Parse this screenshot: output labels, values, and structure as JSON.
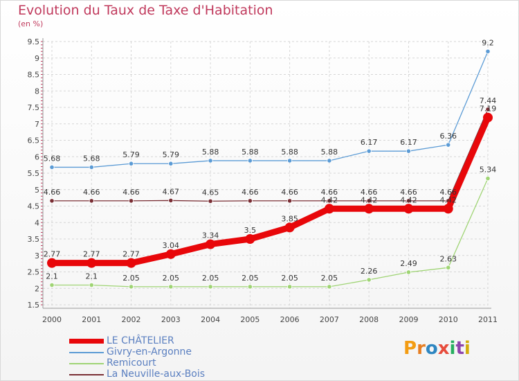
{
  "title": "Evolution du Taux de Taxe d'Habitation",
  "subtitle": "(en %)",
  "logo_text": "Proxiti",
  "colors": {
    "title": "#c0395c",
    "grid": "#d6d6d6",
    "axis": "#999999"
  },
  "chart_data": {
    "type": "line",
    "title": "Evolution du Taux de Taxe d'Habitation",
    "ylabel": "(en %)",
    "xlabel": "",
    "ylim": [
      1.5,
      9.5
    ],
    "yticks": [
      "1.5",
      "2",
      "2.5",
      "3",
      "3.5",
      "4",
      "4.5",
      "5",
      "5.5",
      "6",
      "6.5",
      "7",
      "7.5",
      "8",
      "8.5",
      "9",
      "9.5"
    ],
    "grid": true,
    "legend_position": "bottom-left",
    "x": [
      2000,
      2001,
      2002,
      2003,
      2004,
      2005,
      2006,
      2007,
      2008,
      2009,
      2010,
      2011
    ],
    "series": [
      {
        "name": "LE CHÂTELIER",
        "color": "#e8070a",
        "bold": true,
        "values": [
          2.77,
          2.77,
          2.77,
          3.04,
          3.34,
          3.5,
          3.85,
          4.42,
          4.42,
          4.42,
          4.42,
          7.19
        ],
        "labels": [
          "2.77",
          "2.77",
          "2.77",
          "3.04",
          "3.34",
          "3.5",
          "3.85",
          "4.42",
          "4.42",
          "4.42",
          "4.42",
          "7.19"
        ]
      },
      {
        "name": "Givry-en-Argonne",
        "color": "#5b9bd5",
        "bold": false,
        "values": [
          5.68,
          5.68,
          5.79,
          5.79,
          5.88,
          5.88,
          5.88,
          5.88,
          6.17,
          6.17,
          6.36,
          9.2
        ],
        "labels": [
          "5.68",
          "5.68",
          "5.79",
          "5.79",
          "5.88",
          "5.88",
          "5.88",
          "5.88",
          "6.17",
          "6.17",
          "6.36",
          "9.2"
        ]
      },
      {
        "name": "Remicourt",
        "color": "#9fd474",
        "bold": false,
        "values": [
          2.1,
          2.1,
          2.05,
          2.05,
          2.05,
          2.05,
          2.05,
          2.05,
          2.26,
          2.49,
          2.63,
          5.34
        ],
        "labels": [
          "2.1",
          "2.1",
          "2.05",
          "2.05",
          "2.05",
          "2.05",
          "2.05",
          "2.05",
          "2.26",
          "2.49",
          "2.63",
          "5.34"
        ]
      },
      {
        "name": "La Neuville-aux-Bois",
        "color": "#7a2f35",
        "bold": false,
        "values": [
          4.66,
          4.66,
          4.66,
          4.67,
          4.65,
          4.66,
          4.66,
          4.66,
          4.66,
          4.66,
          4.66,
          7.44
        ],
        "labels": [
          "4.66",
          "4.66",
          "4.66",
          "4.67",
          "4.65",
          "4.66",
          "4.66",
          "4.66",
          "4.66",
          "4.66",
          "4.66",
          "7.44"
        ]
      }
    ]
  }
}
